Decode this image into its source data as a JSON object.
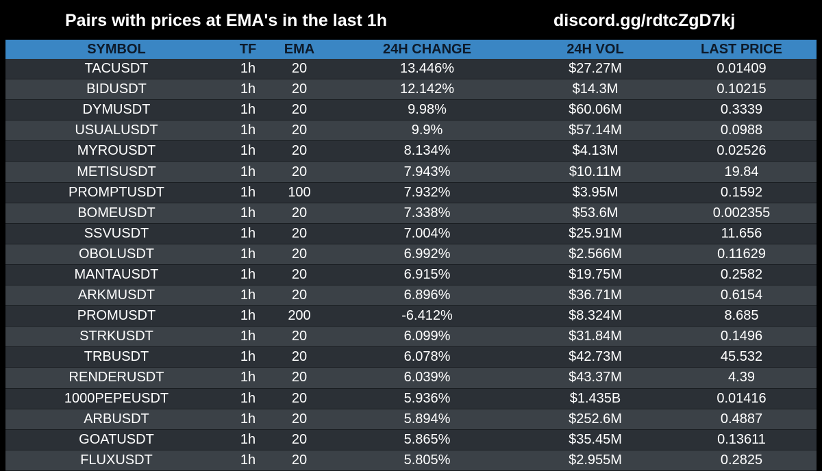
{
  "header": {
    "title": "Pairs with prices at EMA's in the last 1h",
    "link": "discord.gg/rdtcZgD7kj"
  },
  "columns": [
    "SYMBOL",
    "TF",
    "EMA",
    "24H CHANGE",
    "24H VOL",
    "LAST PRICE"
  ],
  "rows": [
    [
      "TACUSDT",
      "1h",
      "20",
      "13.446%",
      "$27.27M",
      "0.01409"
    ],
    [
      "BIDUSDT",
      "1h",
      "20",
      "12.142%",
      "$14.3M",
      "0.10215"
    ],
    [
      "DYMUSDT",
      "1h",
      "20",
      "9.98%",
      "$60.06M",
      "0.3339"
    ],
    [
      "USUALUSDT",
      "1h",
      "20",
      "9.9%",
      "$57.14M",
      "0.0988"
    ],
    [
      "MYROUSDT",
      "1h",
      "20",
      "8.134%",
      "$4.13M",
      "0.02526"
    ],
    [
      "METISUSDT",
      "1h",
      "20",
      "7.943%",
      "$10.11M",
      "19.84"
    ],
    [
      "PROMPTUSDT",
      "1h",
      "100",
      "7.932%",
      "$3.95M",
      "0.1592"
    ],
    [
      "BOMEUSDT",
      "1h",
      "20",
      "7.338%",
      "$53.6M",
      "0.002355"
    ],
    [
      "SSVUSDT",
      "1h",
      "20",
      "7.004%",
      "$25.91M",
      "11.656"
    ],
    [
      "OBOLUSDT",
      "1h",
      "20",
      "6.992%",
      "$2.566M",
      "0.11629"
    ],
    [
      "MANTAUSDT",
      "1h",
      "20",
      "6.915%",
      "$19.75M",
      "0.2582"
    ],
    [
      "ARKMUSDT",
      "1h",
      "20",
      "6.896%",
      "$36.71M",
      "0.6154"
    ],
    [
      "PROMUSDT",
      "1h",
      "200",
      "-6.412%",
      "$8.324M",
      "8.685"
    ],
    [
      "STRKUSDT",
      "1h",
      "20",
      "6.099%",
      "$31.84M",
      "0.1496"
    ],
    [
      "TRBUSDT",
      "1h",
      "20",
      "6.078%",
      "$42.73M",
      "45.532"
    ],
    [
      "RENDERUSDT",
      "1h",
      "20",
      "6.039%",
      "$43.37M",
      "4.39"
    ],
    [
      "1000PEPEUSDT",
      "1h",
      "20",
      "5.936%",
      "$1.435B",
      "0.01416"
    ],
    [
      "ARBUSDT",
      "1h",
      "20",
      "5.894%",
      "$252.6M",
      "0.4887"
    ],
    [
      "GOATUSDT",
      "1h",
      "20",
      "5.865%",
      "$35.45M",
      "0.13611"
    ],
    [
      "FLUXUSDT",
      "1h",
      "20",
      "5.805%",
      "$2.955M",
      "0.2825"
    ]
  ],
  "colors": {
    "background": "#000000",
    "header_row": "#3a86c4",
    "row_odd": "#2b3036",
    "row_even": "#3b4147"
  }
}
